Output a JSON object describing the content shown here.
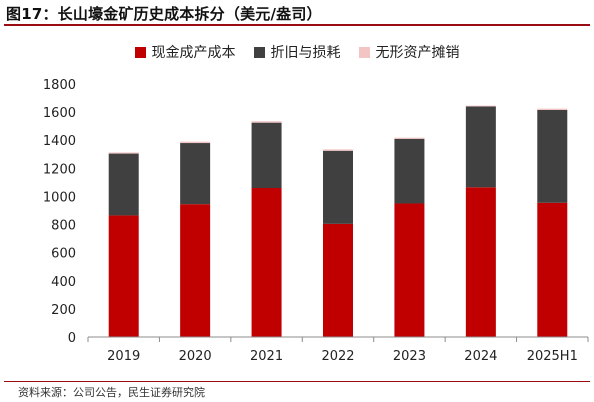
{
  "header": {
    "figure_title": "图17：长山壕金矿历史成本拆分（美元/盎司）"
  },
  "footer": {
    "source": "资料来源：公司公告，民生证券研究院"
  },
  "colors": {
    "accent": "#9a0c12",
    "cash_cost": "#c00000",
    "depreciation": "#404040",
    "amortization": "#f2c4c4"
  },
  "chart_data": {
    "type": "bar",
    "stacked": true,
    "title": "",
    "xlabel": "",
    "ylabel": "",
    "ylim": [
      0,
      1800
    ],
    "yticks": [
      0,
      200,
      400,
      600,
      800,
      1000,
      1200,
      1400,
      1600,
      1800
    ],
    "grid": false,
    "legend_position": "top",
    "categories": [
      "2019",
      "2020",
      "2021",
      "2022",
      "2023",
      "2024",
      "2025H1"
    ],
    "series": [
      {
        "name": "现金成产成本",
        "color": "#c00000",
        "values": [
          865,
          945,
          1060,
          805,
          950,
          1065,
          955
        ]
      },
      {
        "name": "折旧与损耗",
        "color": "#404040",
        "values": [
          440,
          435,
          465,
          520,
          460,
          575,
          660
        ]
      },
      {
        "name": "无形资产摊销",
        "color": "#f2c4c4",
        "values": [
          8,
          10,
          10,
          10,
          8,
          6,
          10
        ]
      }
    ]
  }
}
